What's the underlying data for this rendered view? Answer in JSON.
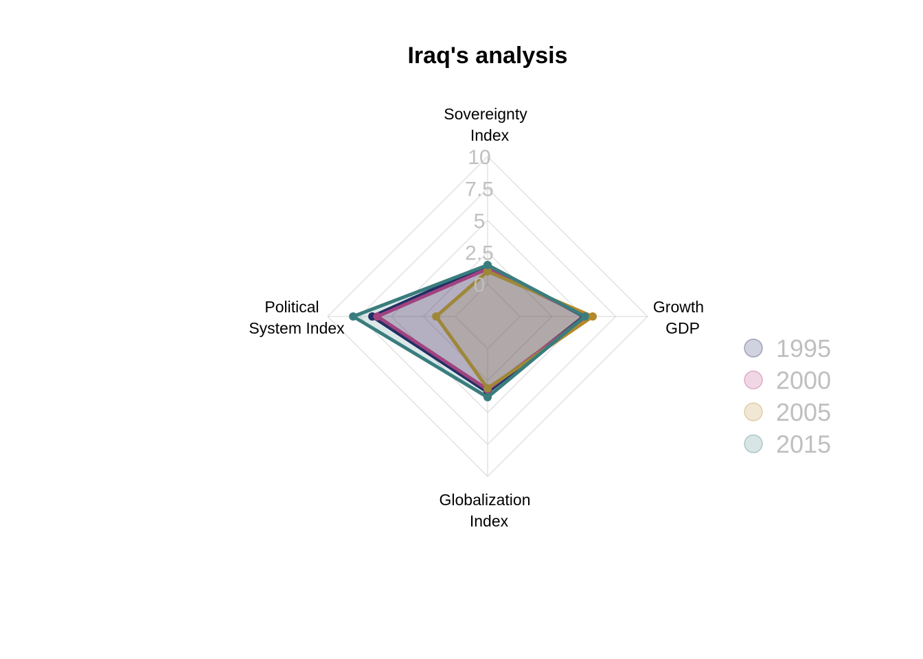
{
  "chart_data": {
    "type": "radar",
    "title": "Iraq's analysis",
    "axes": [
      {
        "label_lines": [
          "Sovereignty",
          "Index"
        ]
      },
      {
        "label_lines": [
          "Growth",
          "GDP"
        ]
      },
      {
        "label_lines": [
          "Globalization",
          "Index"
        ]
      },
      {
        "label_lines": [
          "Political",
          "System Index"
        ]
      }
    ],
    "ticks": [
      "0",
      "2.5",
      "5",
      "7.5",
      "10"
    ],
    "range": [
      0,
      10
    ],
    "series": [
      {
        "name": "1995",
        "color": "#1b1f5e",
        "values": [
          1.5,
          5.0,
          3.4,
          6.5
        ]
      },
      {
        "name": "2000",
        "color": "#b8367f",
        "values": [
          1.2,
          5.2,
          3.2,
          6.1
        ]
      },
      {
        "name": "2005",
        "color": "#b5892a",
        "values": [
          1.0,
          5.7,
          3.1,
          1.5
        ]
      },
      {
        "name": "2015",
        "color": "#3a7d7e",
        "values": [
          1.5,
          5.1,
          3.8,
          8.0
        ]
      }
    ],
    "grid": true,
    "legend_position": "right"
  }
}
